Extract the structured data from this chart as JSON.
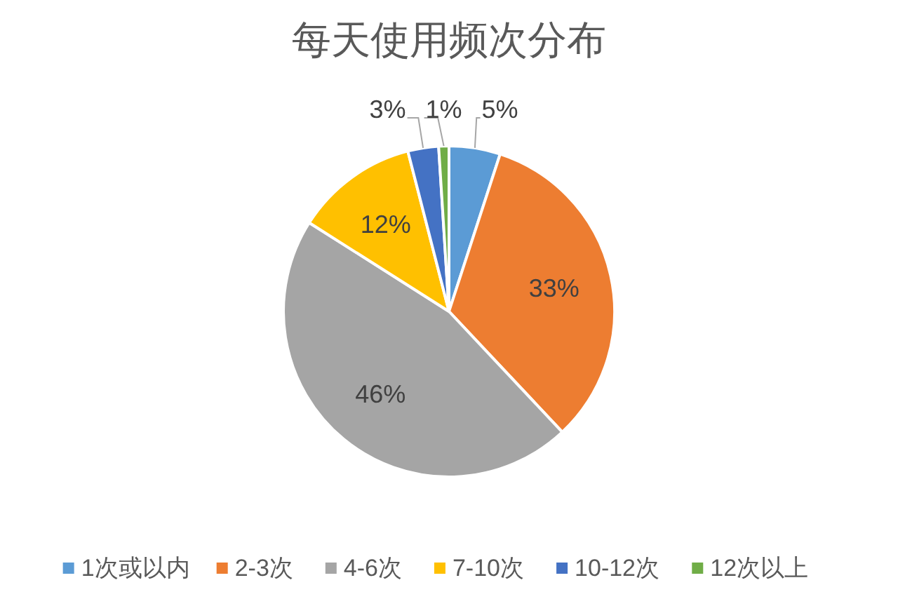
{
  "chart_data": {
    "type": "pie",
    "title": "每天使用频次分布",
    "categories": [
      "1次或以内",
      "2-3次",
      "4-6次",
      "7-10次",
      "10-12次",
      "12次以上"
    ],
    "values": [
      5,
      33,
      46,
      12,
      3,
      1
    ],
    "colors": [
      "#5b9bd5",
      "#ed7d31",
      "#a5a5a5",
      "#ffc000",
      "#4472c4",
      "#70ad47"
    ],
    "value_labels": [
      "5%",
      "33%",
      "46%",
      "12%",
      "3%",
      "1%"
    ],
    "legend": "bottom"
  }
}
